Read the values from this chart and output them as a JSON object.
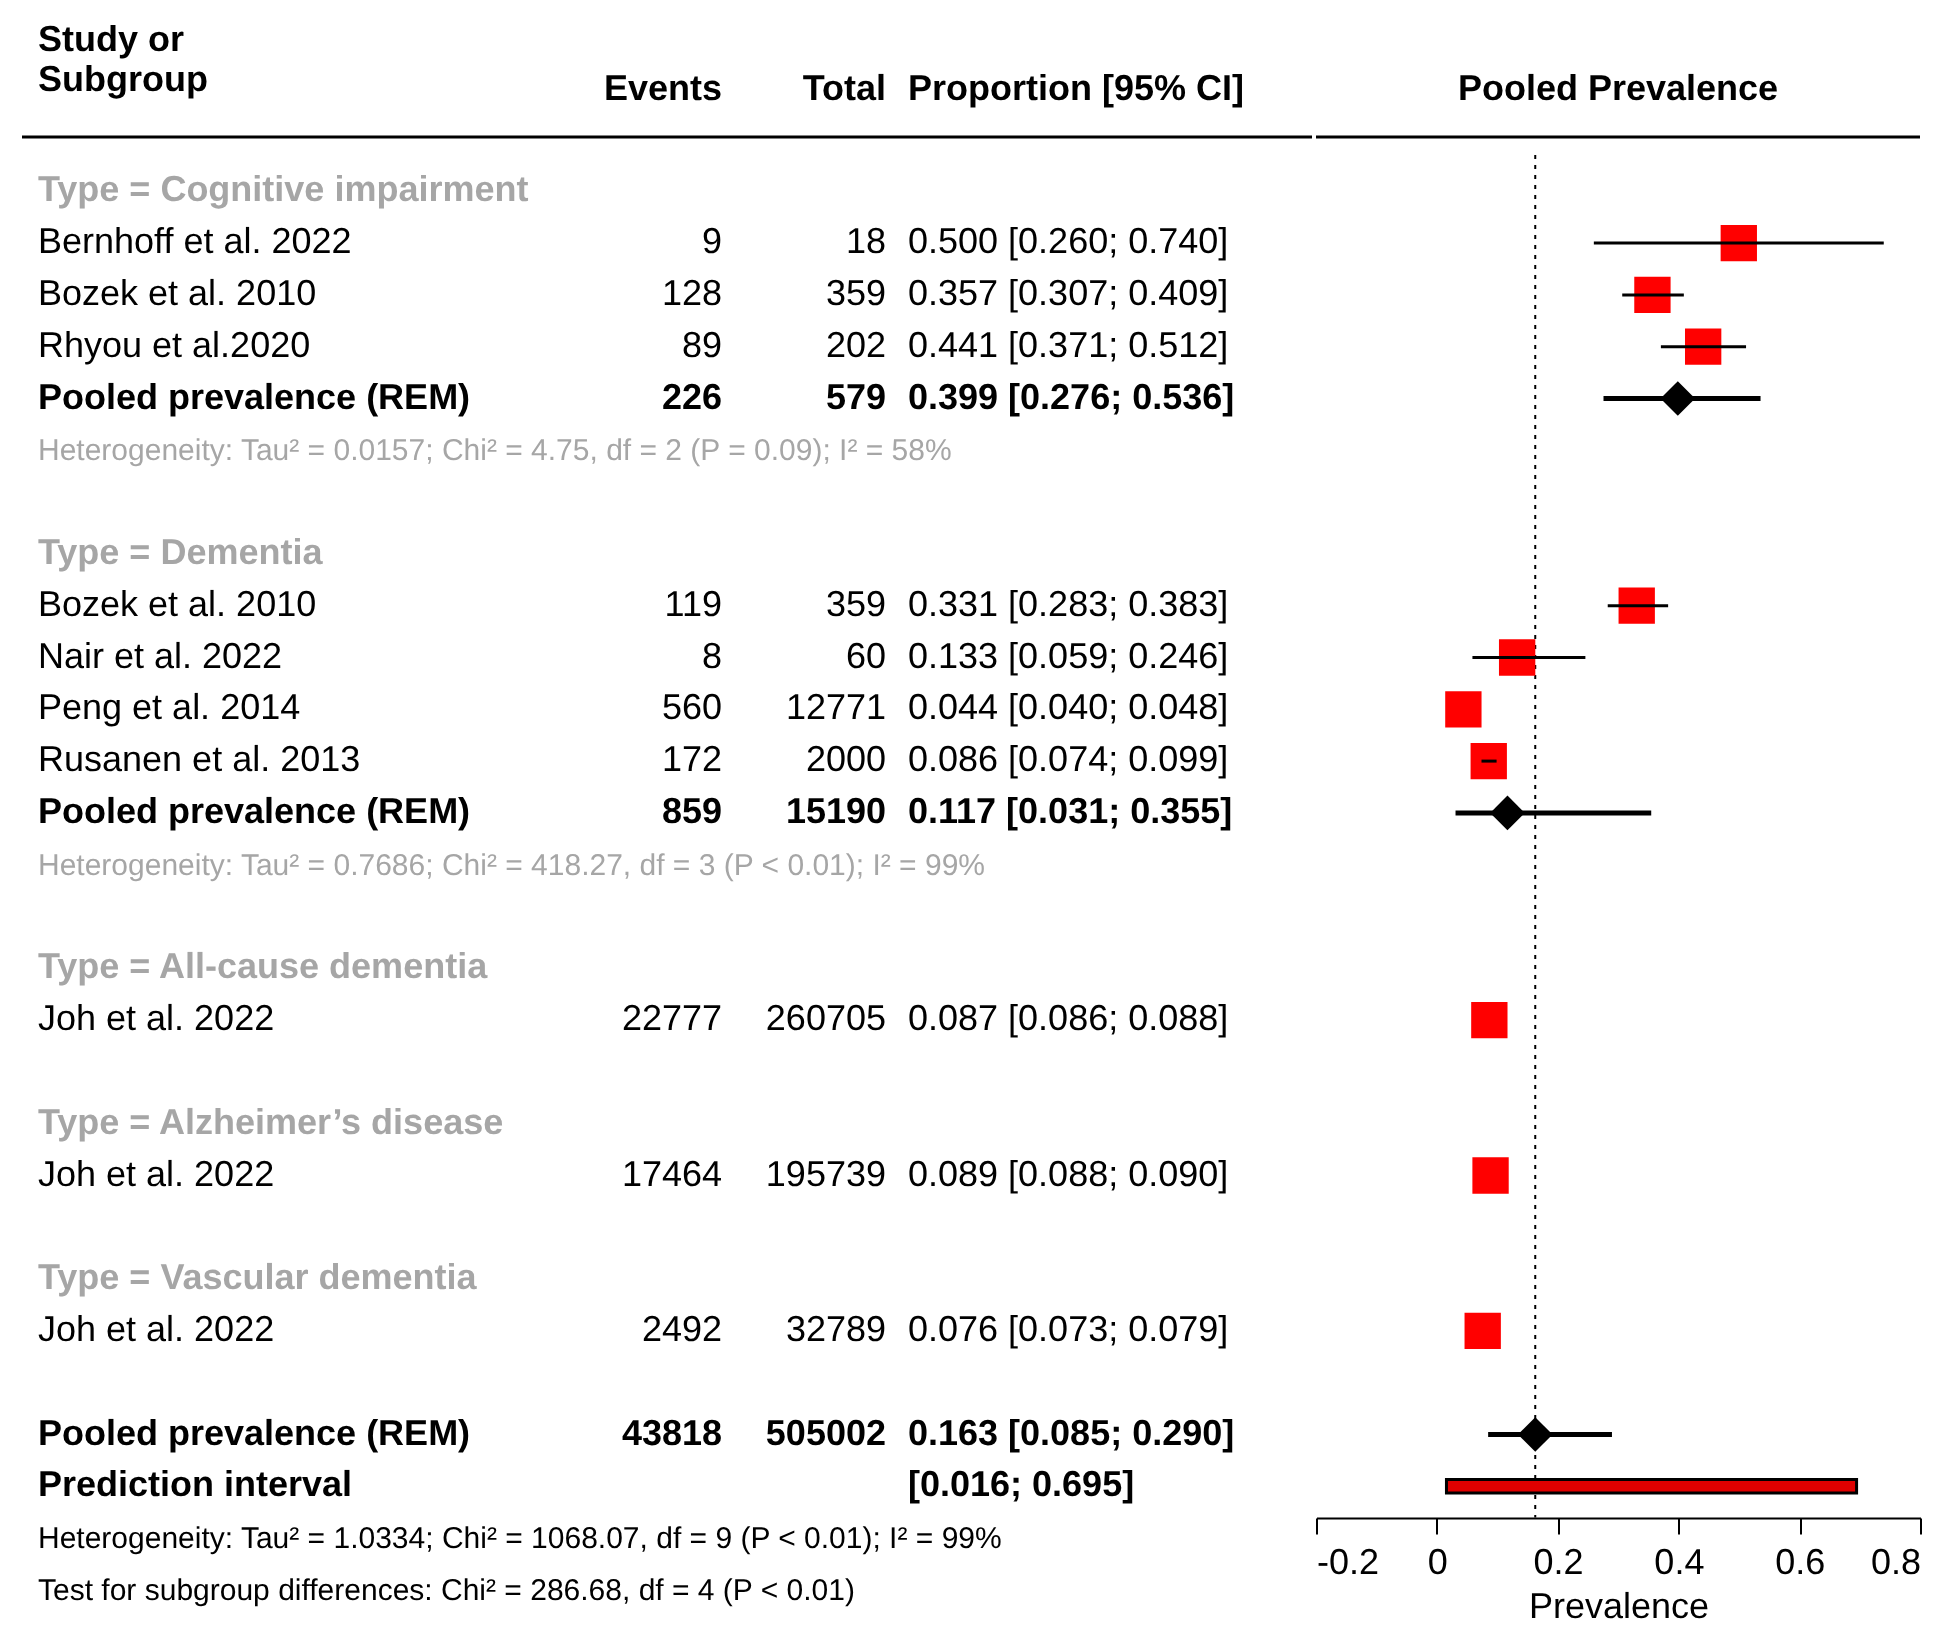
{
  "chart_data": [
    {
      "type": "other",
      "categories": [
        "Study or\nSubgroup",
        "Events",
        "Total",
        "Proportion [95% CI]"
      ],
      "y_categories": [
        "Type = Cognitive impairment",
        "Bernhoff et al. 2022",
        "Bozek et al. 2010",
        "Rhyou et al.2020",
        "Pooled prevalence (REM)",
        "Heterogeneity: Tau² = 0.0157; Chi² = 4.75, df = 2 (P = 0.09); I² = 58%",
        null,
        "Type = Dementia",
        "Bozek et al. 2010",
        "Nair et al. 2022",
        "Peng et al. 2014",
        "Rusanen et al. 2013",
        "Pooled prevalence (REM)",
        "Heterogeneity: Tau² = 0.7686; Chi² = 418.27, df = 3 (P < 0.01); I² = 99%",
        null,
        "Type = All-cause dementia",
        "Joh et al. 2022",
        null,
        "Type = Alzheimer’s disease",
        "Joh et al. 2022",
        null,
        "Type = Vascular dementia",
        "Joh et al. 2022",
        null,
        "Pooled prevalence (REM)",
        "Prediction interval"
      ],
      "cell_labels": [
        [
          null,
          null,
          null
        ],
        [
          "9",
          "18",
          "0.500 [0.260; 0.740]"
        ],
        [
          "128",
          "359",
          "0.357 [0.307; 0.409]"
        ],
        [
          "89",
          "202",
          "0.441 [0.371; 0.512]"
        ],
        [
          "226",
          "579",
          "0.399 [0.276; 0.536]"
        ],
        [
          null,
          null,
          null
        ],
        [
          null,
          null,
          null
        ],
        [
          null,
          null,
          null
        ],
        [
          "119",
          "359",
          "0.331 [0.283; 0.383]"
        ],
        [
          "8",
          "60",
          "0.133 [0.059; 0.246]"
        ],
        [
          "560",
          "12771",
          "0.044 [0.040; 0.048]"
        ],
        [
          "172",
          "2000",
          "0.086 [0.074; 0.099]"
        ],
        [
          "859",
          "15190",
          "0.117 [0.031; 0.355]"
        ],
        [
          null,
          null,
          null
        ],
        [
          null,
          null,
          null
        ],
        [
          null,
          null,
          null
        ],
        [
          "22777",
          "260705",
          "0.087 [0.086; 0.088]"
        ],
        [
          null,
          null,
          null
        ],
        [
          null,
          null,
          null
        ],
        [
          "17464",
          "195739",
          "0.089 [0.088; 0.090]"
        ],
        [
          null,
          null,
          null
        ],
        [
          null,
          null,
          null
        ],
        [
          "2492",
          "32789",
          "0.076 [0.073; 0.079]"
        ],
        [
          null,
          null,
          null
        ],
        [
          "43818",
          "505002",
          "0.163 [0.085; 0.290]"
        ],
        [
          null,
          null,
          "[0.016; 0.695]"
        ]
      ],
      "annotations": [
        "Heterogeneity: Tau² = 1.0334; Chi² = 1068.07, df = 9 (P < 0.01); I² = 99%",
        "Test for subgroup differences: Chi² = 286.68, df = 4 (P < 0.01)"
      ]
    },
    {
      "type": "scatter",
      "orientation": "horizontal",
      "title": "Pooled Prevalence",
      "xlabel": "Prevalence",
      "categories": [
        null,
        null,
        null,
        null,
        null,
        null,
        null,
        null,
        null,
        null,
        null,
        null,
        null,
        null,
        null,
        null,
        null,
        null,
        null,
        null,
        null,
        null,
        null,
        null,
        null,
        null
      ],
      "xlim": [
        -0.2,
        0.8
      ],
      "xticks": [
        -0.2,
        0,
        0.2,
        0.4,
        0.6,
        0.8
      ],
      "tick_labels": "x",
      "series": [
        {
          "type": "scatter",
          "marker": "square",
          "color": "#ff0000",
          "values": [
            null,
            0.5,
            0.357,
            0.441,
            null,
            null,
            null,
            null,
            0.331,
            0.133,
            0.044,
            0.086,
            null,
            null,
            null,
            null,
            0.087,
            null,
            null,
            0.089,
            null,
            null,
            0.076,
            null,
            null,
            null
          ],
          "errors": [
            null,
            [
              0.26,
              0.74
            ],
            [
              0.307,
              0.409
            ],
            [
              0.371,
              0.512
            ],
            null,
            null,
            null,
            null,
            [
              0.283,
              0.383
            ],
            [
              0.059,
              0.246
            ],
            null,
            [
              0.074,
              0.099
            ],
            null,
            null,
            null,
            null,
            null,
            null,
            null,
            null,
            null,
            null,
            null,
            null,
            null,
            null
          ]
        },
        {
          "type": "scatter",
          "marker": "diamond",
          "color": "#000000",
          "values": [
            null,
            null,
            null,
            null,
            0.399,
            null,
            null,
            null,
            null,
            null,
            null,
            null,
            0.117,
            null,
            null,
            null,
            null,
            null,
            null,
            null,
            null,
            null,
            null,
            null,
            0.163,
            null
          ],
          "errors": [
            null,
            null,
            null,
            null,
            [
              0.276,
              0.536
            ],
            null,
            null,
            null,
            null,
            null,
            null,
            null,
            [
              0.031,
              0.355
            ],
            null,
            null,
            null,
            null,
            null,
            null,
            null,
            null,
            null,
            null,
            null,
            [
              0.085,
              0.29
            ],
            null
          ]
        },
        {
          "type": "bar",
          "color": "#e00000",
          "base": [
            null,
            null,
            null,
            null,
            null,
            null,
            null,
            null,
            null,
            null,
            null,
            null,
            null,
            null,
            null,
            null,
            null,
            null,
            null,
            null,
            null,
            null,
            null,
            null,
            null,
            0.016
          ],
          "values": [
            null,
            null,
            null,
            null,
            null,
            null,
            null,
            null,
            null,
            null,
            null,
            null,
            null,
            null,
            null,
            null,
            null,
            null,
            null,
            null,
            null,
            null,
            null,
            null,
            null,
            0.679
          ]
        }
      ],
      "ref_lines": [
        {
          "axis": "x",
          "value": 0.163,
          "color": "#000000",
          "line_style": "dotted"
        }
      ]
    }
  ]
}
